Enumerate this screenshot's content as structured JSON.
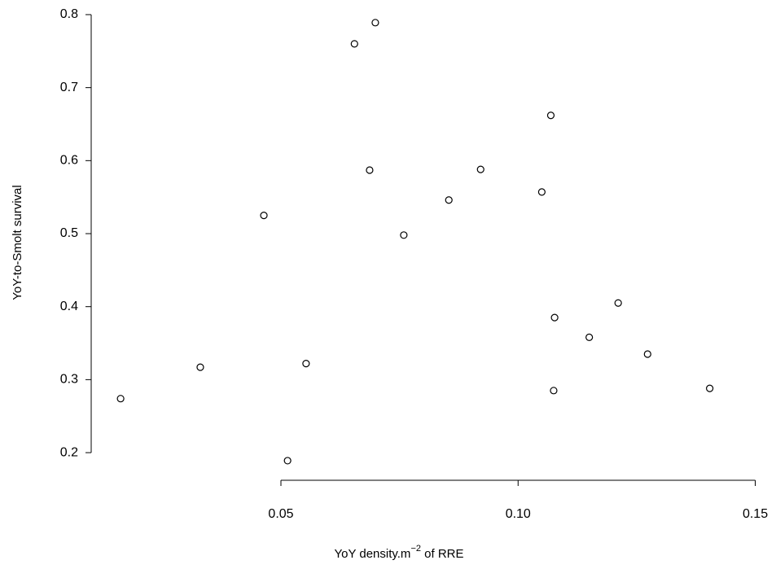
{
  "chart_data": {
    "type": "scatter",
    "xlabel": [
      "YoY density.m",
      "−2",
      " of RRE"
    ],
    "ylabel": "YoY-to-Smolt survival",
    "x": [
      0.0162,
      0.033,
      0.0464,
      0.0514,
      0.0553,
      0.0655,
      0.0699,
      0.0687,
      0.0759,
      0.0854,
      0.0921,
      0.105,
      0.1069,
      0.1077,
      0.1075,
      0.115,
      0.1211,
      0.1273,
      0.1404
    ],
    "values": [
      0.274,
      0.317,
      0.525,
      0.189,
      0.322,
      0.76,
      0.789,
      0.587,
      0.498,
      0.546,
      0.588,
      0.557,
      0.662,
      0.385,
      0.285,
      0.358,
      0.405,
      0.335,
      0.288
    ],
    "color": "#000000",
    "xlim": [
      0.01,
      0.153
    ],
    "ylim": [
      0.18,
      0.81
    ],
    "xticks": [
      0.05,
      {
        "value": 0.1,
        "label": "0.10"
      },
      0.15
    ],
    "yticks": [
      0.2,
      0.3,
      0.4,
      0.5,
      0.6,
      0.7,
      0.8
    ]
  }
}
